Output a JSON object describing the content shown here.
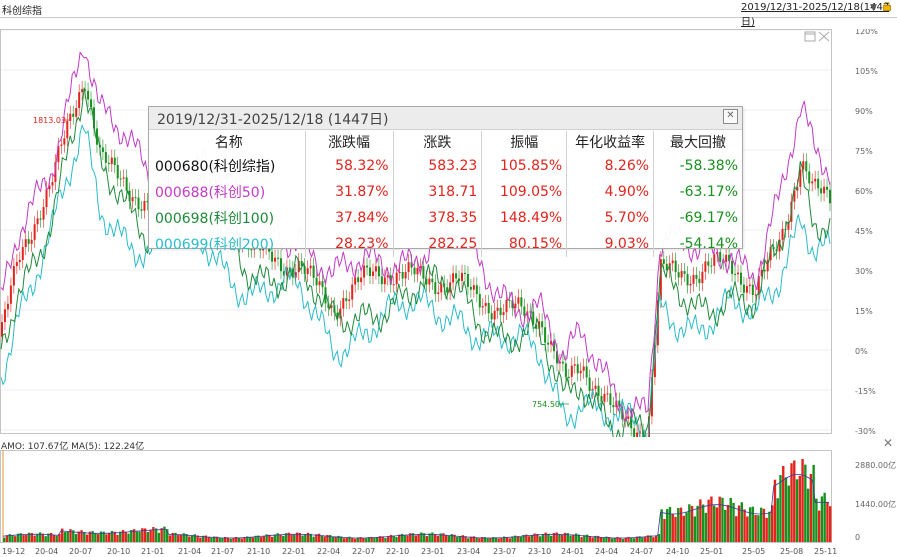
{
  "toolbar": {
    "title": "科创综指",
    "range_link": "2019/12/31-2025/12/18(1447日)",
    "dropdown_icon": "down-triangle-icon",
    "lock_icon": "lock-icon"
  },
  "main_chart": {
    "y_axis_labels": [
      "120%",
      "105%",
      "90%",
      "75%",
      "60%",
      "45%",
      "30%",
      "15%",
      "0%",
      "-15%",
      "-30%"
    ],
    "annotations": {
      "high": "1813.03",
      "low": "754.50"
    }
  },
  "volume_chart": {
    "header": "AMO: 107.67亿  MA(5): 122.24亿",
    "y_axis_labels": [
      "2880.00亿",
      "1440.00亿",
      "0"
    ]
  },
  "x_axis_labels": [
    "19-12",
    "20-04",
    "20-07",
    "20-10",
    "21-01",
    "21-04",
    "21-07",
    "21-10",
    "22-01",
    "22-04",
    "22-07",
    "22-10",
    "23-01",
    "23-04",
    "23-07",
    "23-10",
    "24-01",
    "24-04",
    "24-07",
    "24-10",
    "25-01",
    "25-05",
    "25-08",
    "25-11"
  ],
  "stats_panel": {
    "title": "2019/12/31-2025/12/18 (1447日)",
    "columns": [
      "名称",
      "涨跌幅",
      "涨跌",
      "振幅",
      "年化收益率",
      "最大回撤"
    ],
    "rows": [
      {
        "name": "000680(科创综指)",
        "name_color": "#111111",
        "change_pct": "58.32%",
        "change": "583.23",
        "amplitude": "105.85%",
        "annual": "8.26%",
        "drawdown": "-58.38%"
      },
      {
        "name": "000688(科创50)",
        "name_color": "#c23cc6",
        "change_pct": "31.87%",
        "change": "318.71",
        "amplitude": "109.05%",
        "annual": "4.90%",
        "drawdown": "-63.17%"
      },
      {
        "name": "000698(科创100)",
        "name_color": "#1f8a3a",
        "change_pct": "37.84%",
        "change": "378.35",
        "amplitude": "148.49%",
        "annual": "5.70%",
        "drawdown": "-69.17%"
      },
      {
        "name": "000699(科创200)",
        "name_color": "#2bbcc8",
        "change_pct": "28.23%",
        "change": "282.25",
        "amplitude": "80.15%",
        "annual": "9.03%",
        "drawdown": "-54.14%"
      }
    ]
  },
  "colors": {
    "kline_up": "#e2241c",
    "kline_down": "#18911f",
    "series_kc50": "#c23cc6",
    "series_kc100": "#1f8a3a",
    "series_kc200": "#2bbcc8",
    "volume_ma": "#3a3aa0"
  }
}
